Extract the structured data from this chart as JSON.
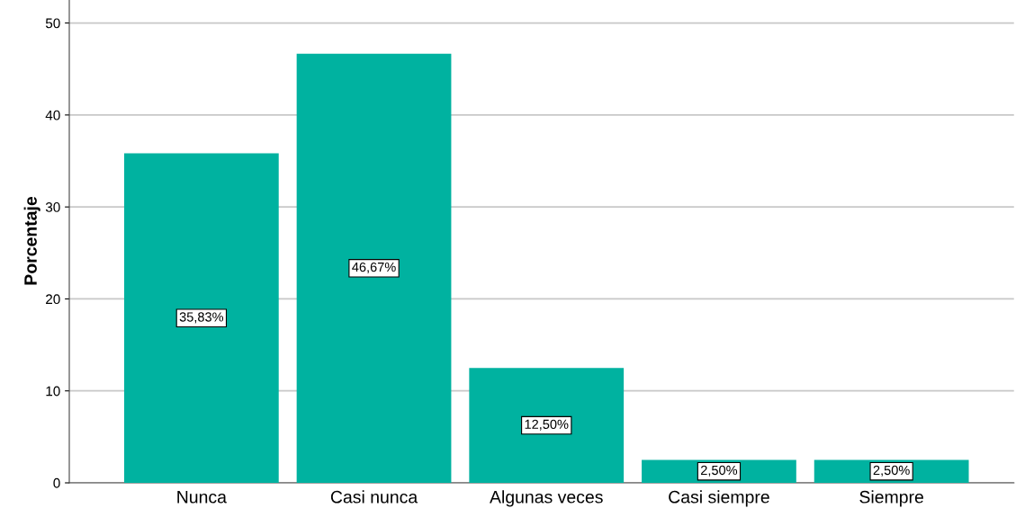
{
  "chart_data": {
    "type": "bar",
    "ylabel": "Porcentaje",
    "categories": [
      "Nunca",
      "Casi nunca",
      "Algunas veces",
      "Casi siempre",
      "Siempre"
    ],
    "values": [
      35.83,
      46.67,
      12.5,
      2.5,
      2.5
    ],
    "value_labels": [
      "35,83%",
      "46,67%",
      "12,50%",
      "2,50%",
      "2,50%"
    ],
    "color": "#00b2a0",
    "ylim": [
      0,
      52.6
    ],
    "yticks": [
      0,
      10,
      20,
      30,
      40,
      50
    ],
    "grid": "y"
  }
}
